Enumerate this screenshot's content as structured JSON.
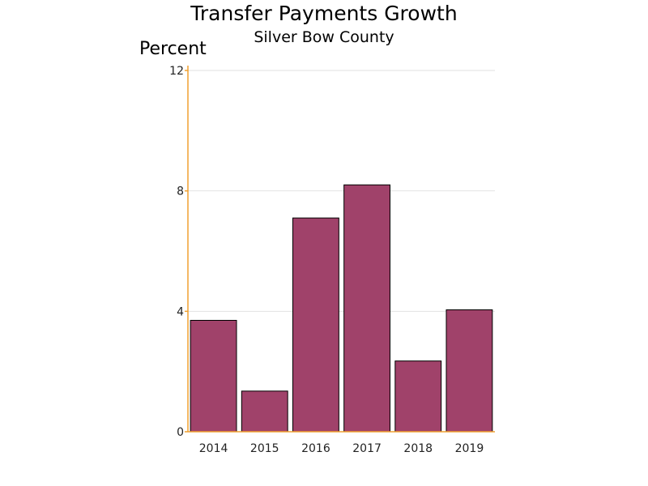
{
  "chart_data": {
    "type": "bar",
    "title": "Transfer Payments Growth",
    "subtitle": "Silver Bow County",
    "ylabel": "Percent",
    "xlabel": "",
    "categories": [
      "2014",
      "2015",
      "2016",
      "2017",
      "2018",
      "2019"
    ],
    "values": [
      3.7,
      1.35,
      7.1,
      8.2,
      2.35,
      4.05
    ],
    "ylim": [
      0,
      12
    ],
    "yticks": [
      0,
      4,
      8,
      12
    ],
    "ytick_labels": [
      "0",
      "4",
      "8",
      "12"
    ],
    "grid": true,
    "bar_color": "#a0426a",
    "axis_color": "#f0a030"
  }
}
